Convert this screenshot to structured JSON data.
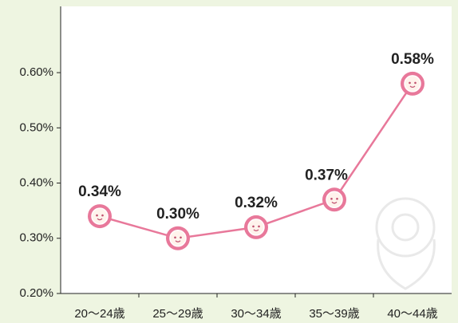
{
  "chart_data": {
    "type": "line",
    "categories": [
      "20〜24歳",
      "25〜29歳",
      "30〜34歳",
      "35〜39歳",
      "40〜44歳"
    ],
    "series": [
      {
        "color": "#e8789a",
        "values": [
          0.34,
          0.3,
          0.32,
          0.37,
          0.58
        ],
        "value_labels": [
          "0.34%",
          "0.30%",
          "0.32%",
          "0.37%",
          "0.58%"
        ]
      }
    ],
    "ylim": [
      0.2,
      0.72
    ],
    "yticks": [
      {
        "value": 0.2,
        "label": "0.20%"
      },
      {
        "value": 0.3,
        "label": "0.30%"
      },
      {
        "value": 0.4,
        "label": "0.40%"
      },
      {
        "value": 0.5,
        "label": "0.50%"
      },
      {
        "value": 0.6,
        "label": "0.60%"
      }
    ],
    "grid": false
  }
}
